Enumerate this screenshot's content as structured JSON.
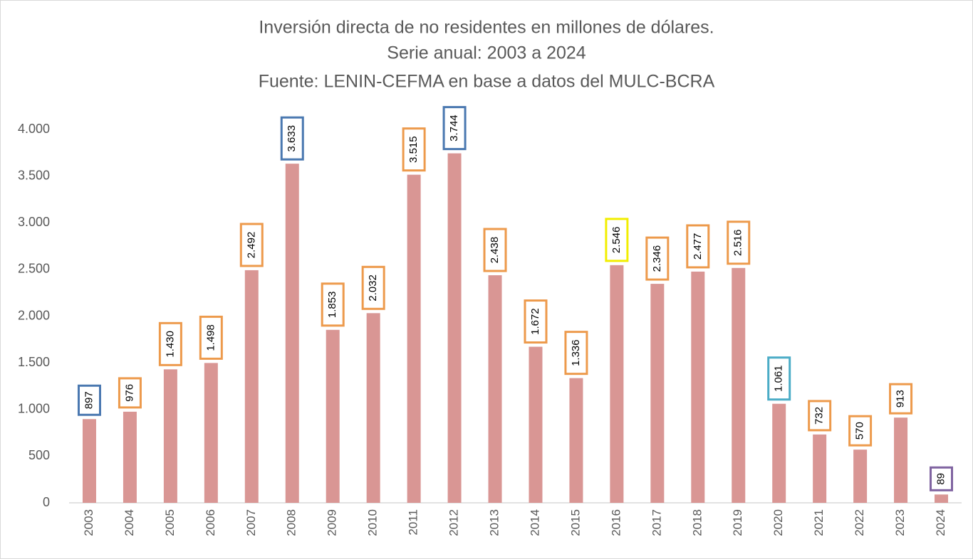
{
  "chart_data": {
    "type": "bar",
    "title": "Inversión directa de no residentes en millones de dólares.",
    "subtitle": "Serie anual: 2003 a 2024",
    "source": "Fuente: LENIN-CEFMA en base a datos del MULC-BCRA",
    "categories": [
      "2003",
      "2004",
      "2005",
      "2006",
      "2007",
      "2008",
      "2009",
      "2010",
      "2011",
      "2012",
      "2013",
      "2014",
      "2015",
      "2016",
      "2017",
      "2018",
      "2019",
      "2020",
      "2021",
      "2022",
      "2023",
      "2024"
    ],
    "values": [
      897,
      976,
      1430,
      1498,
      2492,
      3633,
      1853,
      2032,
      3515,
      3744,
      2438,
      1672,
      1336,
      2546,
      2346,
      2477,
      2516,
      1061,
      732,
      570,
      913,
      89
    ],
    "value_labels": [
      "897",
      "976",
      "1.430",
      "1.498",
      "2.492",
      "3.633",
      "1.853",
      "2.032",
      "3.515",
      "3.744",
      "2.438",
      "1.672",
      "1.336",
      "2.546",
      "2.346",
      "2.477",
      "2.516",
      "1.061",
      "732",
      "570",
      "913",
      "89"
    ],
    "color": "#d99694",
    "label_box_colors": [
      "#4a78b0",
      "#ed9a4c",
      "#ed9a4c",
      "#ed9a4c",
      "#ed9a4c",
      "#4a78b0",
      "#ed9a4c",
      "#ed9a4c",
      "#ed9a4c",
      "#4a78b0",
      "#ed9a4c",
      "#ed9a4c",
      "#ed9a4c",
      "#f2ee00",
      "#ed9a4c",
      "#ed9a4c",
      "#ed9a4c",
      "#4aacc6",
      "#ed9a4c",
      "#ed9a4c",
      "#ed9a4c",
      "#7f63a0"
    ],
    "ylim": [
      0,
      4000
    ],
    "yticks": [
      0,
      500,
      {
        "value": 1000,
        "label": "1.000"
      },
      {
        "value": 1500,
        "label": "1.500"
      },
      {
        "value": 2000,
        "label": "2.000"
      },
      {
        "value": 2500,
        "label": "2.500"
      },
      {
        "value": 3000,
        "label": "3.000"
      },
      {
        "value": 3500,
        "label": "3.500"
      },
      {
        "value": 4000,
        "label": "4.000"
      }
    ],
    "grid": false
  }
}
